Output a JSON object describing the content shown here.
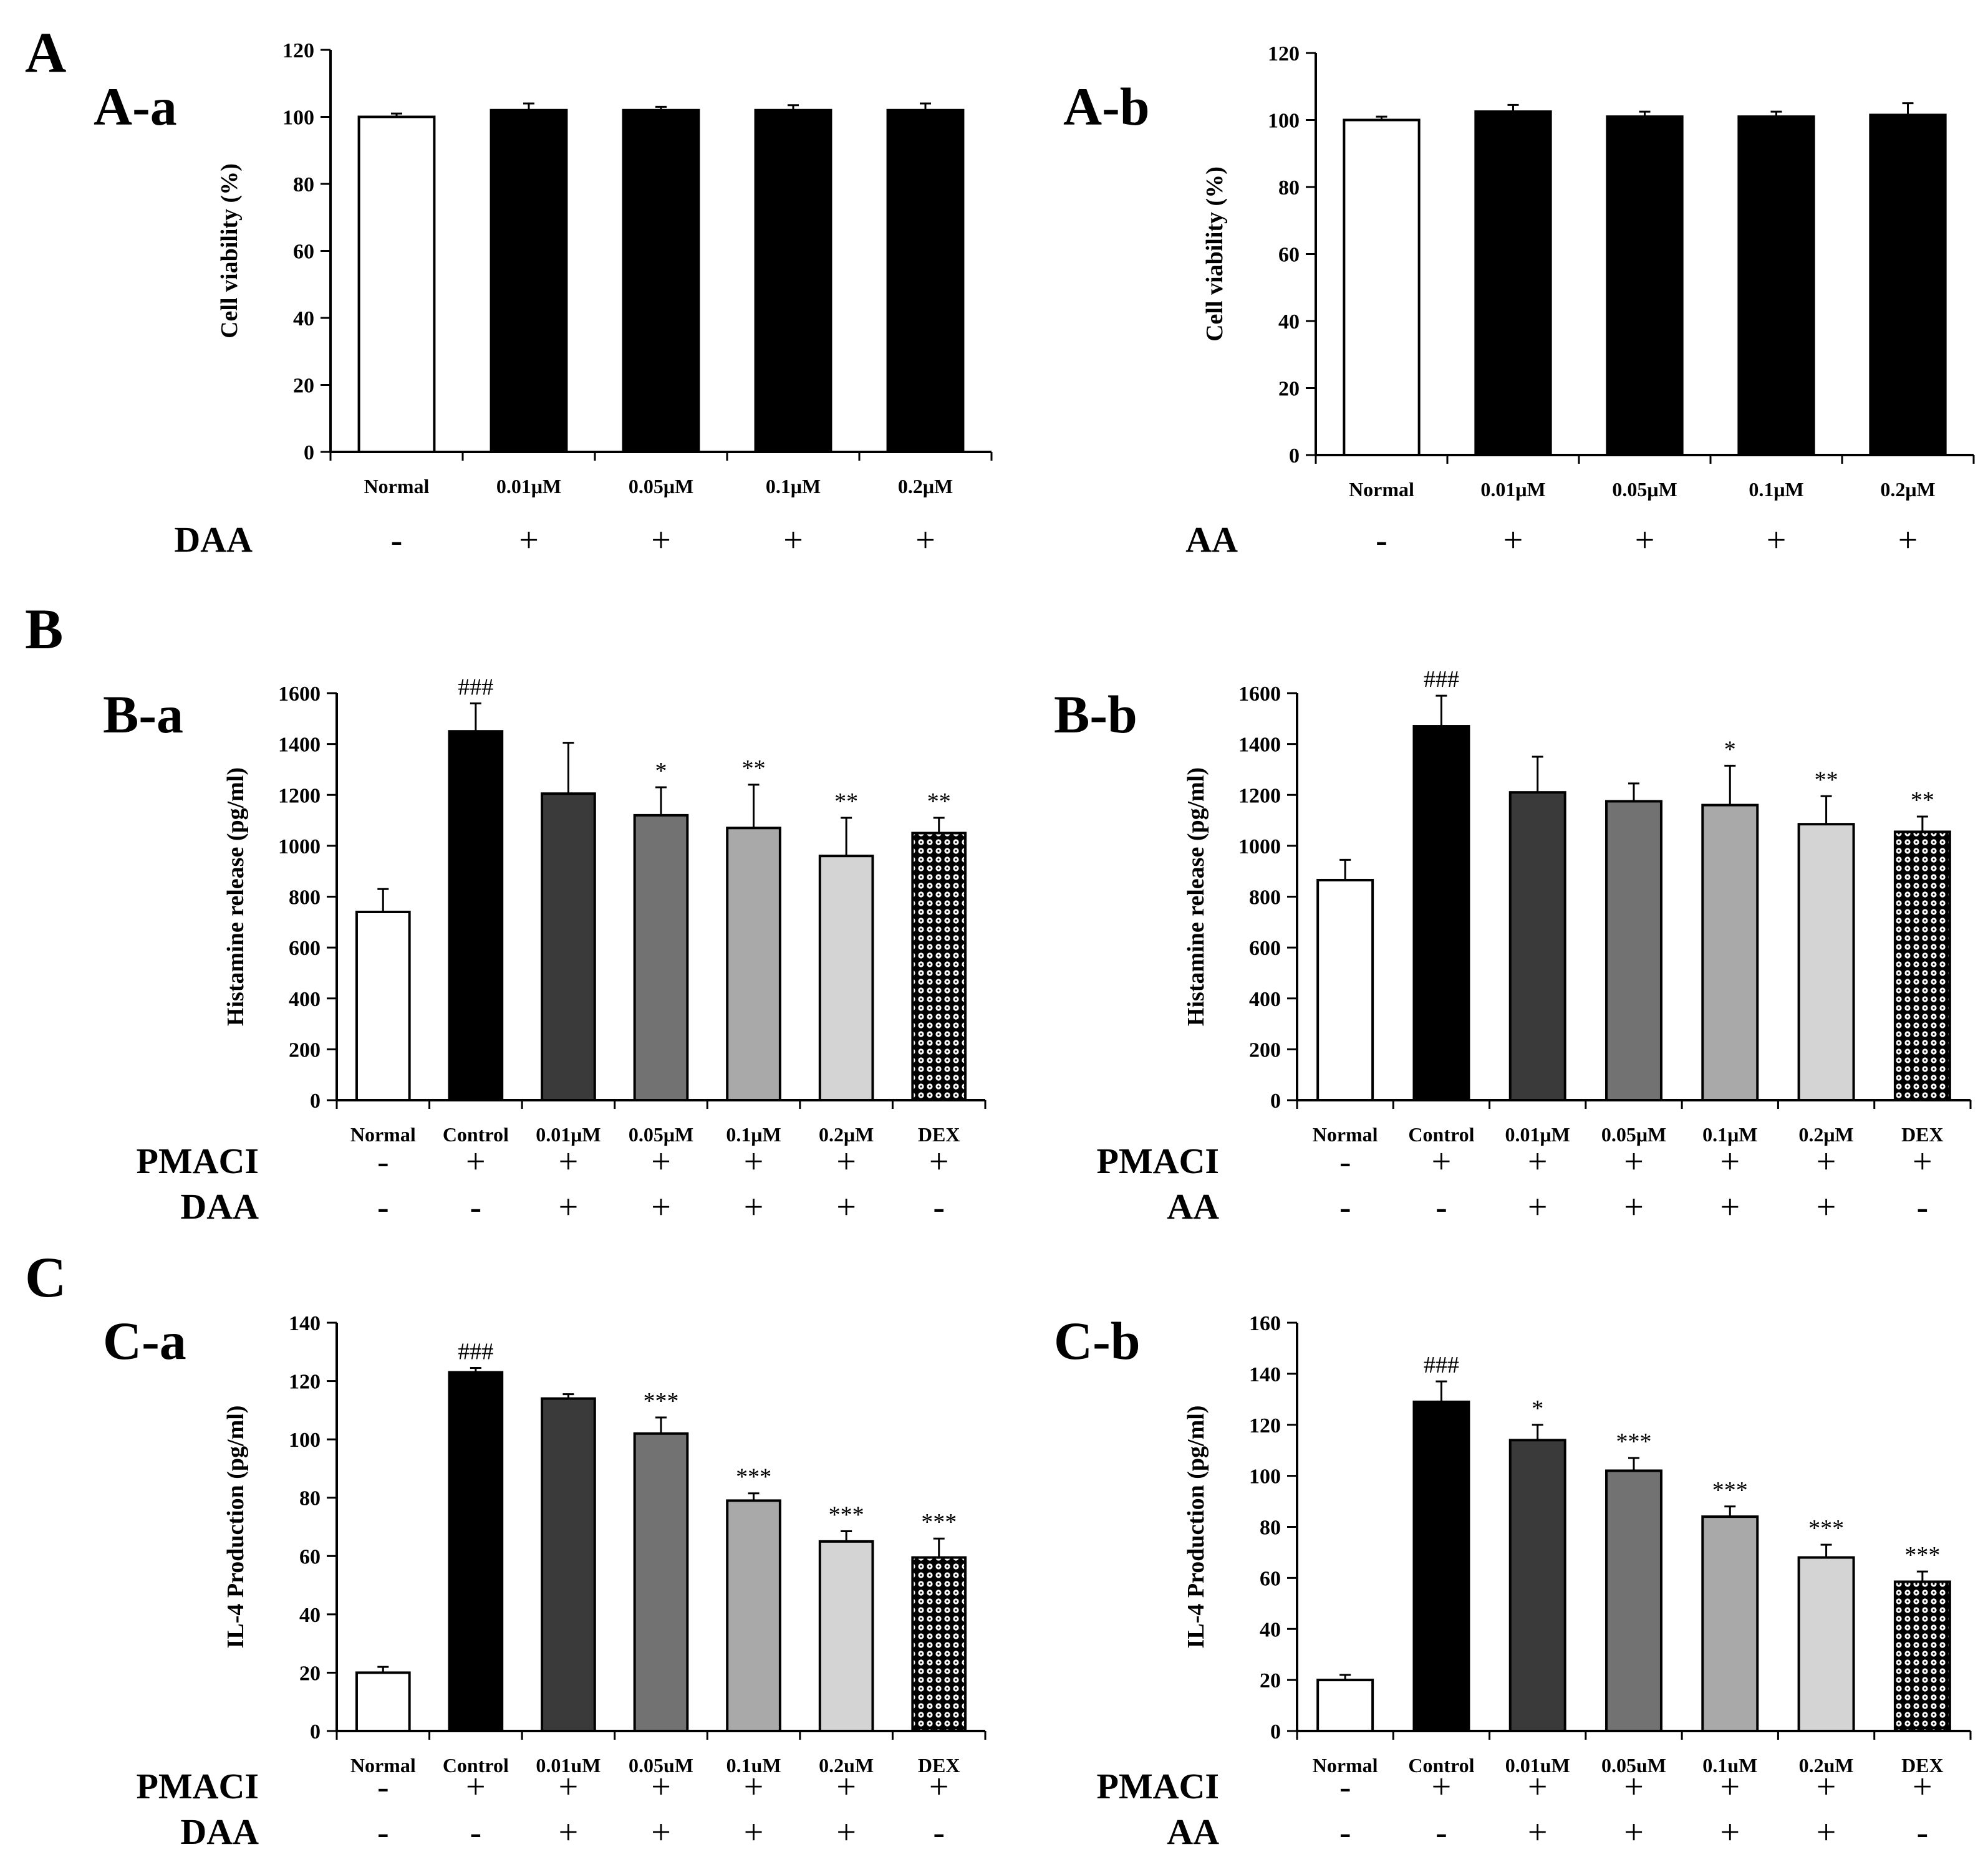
{
  "figure": {
    "sections": [
      "A",
      "B",
      "C"
    ],
    "patterns": {
      "dex_fill": "#000000",
      "dex_dots": "#ffffff"
    }
  },
  "chart_data": [
    {
      "id": "A-a",
      "type": "bar",
      "panel_label": "A-a",
      "ylabel": "Cell viability (%)",
      "ylim": [
        0,
        120
      ],
      "yticks": [
        0,
        20,
        40,
        60,
        80,
        100,
        120
      ],
      "categories": [
        "Normal",
        "0.01μM",
        "0.05μM",
        "0.1μM",
        "0.2μM"
      ],
      "values": [
        100,
        102,
        102,
        102,
        102
      ],
      "errors": [
        1,
        2,
        1,
        1.5,
        2
      ],
      "significance": [
        "",
        "",
        "",
        "",
        ""
      ],
      "colors": [
        "#ffffff",
        "#000000",
        "#000000",
        "#000000",
        "#000000"
      ],
      "treatments": [
        {
          "name": "DAA",
          "signs": [
            "-",
            "+",
            "+",
            "+",
            "+"
          ]
        }
      ]
    },
    {
      "id": "A-b",
      "type": "bar",
      "panel_label": "A-b",
      "ylabel": "Cell viability (%)",
      "ylim": [
        0,
        120
      ],
      "yticks": [
        0,
        20,
        40,
        60,
        80,
        100,
        120
      ],
      "categories": [
        "Normal",
        "0.01μM",
        "0.05μM",
        "0.1μM",
        "0.2μM"
      ],
      "values": [
        100,
        102.5,
        101,
        101,
        101.5
      ],
      "errors": [
        1,
        2,
        1.5,
        1.5,
        3.5
      ],
      "significance": [
        "",
        "",
        "",
        "",
        ""
      ],
      "colors": [
        "#ffffff",
        "#000000",
        "#000000",
        "#000000",
        "#000000"
      ],
      "treatments": [
        {
          "name": "AA",
          "signs": [
            "-",
            "+",
            "+",
            "+",
            "+"
          ]
        }
      ]
    },
    {
      "id": "B-a",
      "type": "bar",
      "panel_label": "B-a",
      "ylabel": "Histamine release (pg/ml)",
      "ylim": [
        0,
        1600
      ],
      "yticks": [
        0,
        200,
        400,
        600,
        800,
        1000,
        1200,
        1400,
        1600
      ],
      "categories": [
        "Normal",
        "Control",
        "0.01μM",
        "0.05μM",
        "0.1μM",
        "0.2μM",
        "DEX"
      ],
      "values": [
        740,
        1450,
        1205,
        1120,
        1070,
        960,
        1050
      ],
      "errors": [
        90,
        110,
        200,
        110,
        170,
        150,
        60
      ],
      "significance": [
        "",
        "###",
        "",
        "*",
        "**",
        "**",
        "**"
      ],
      "colors": [
        "#ffffff",
        "#000000",
        "#3a3a3a",
        "#727272",
        "#a9a9a9",
        "#d4d4d4",
        "pattern"
      ],
      "treatments": [
        {
          "name": "PMACI",
          "signs": [
            "-",
            "+",
            "+",
            "+",
            "+",
            "+",
            "+"
          ]
        },
        {
          "name": "DAA",
          "signs": [
            "-",
            "-",
            "+",
            "+",
            "+",
            "+",
            "-"
          ]
        }
      ]
    },
    {
      "id": "B-b",
      "type": "bar",
      "panel_label": "B-b",
      "ylabel": "Histamine release (pg/ml)",
      "ylim": [
        0,
        1600
      ],
      "yticks": [
        0,
        200,
        400,
        600,
        800,
        1000,
        1200,
        1400,
        1600
      ],
      "categories": [
        "Normal",
        "Control",
        "0.01μM",
        "0.05μM",
        "0.1μM",
        "0.2μM",
        "DEX"
      ],
      "values": [
        865,
        1470,
        1210,
        1175,
        1160,
        1085,
        1055
      ],
      "errors": [
        80,
        120,
        140,
        70,
        155,
        110,
        60
      ],
      "significance": [
        "",
        "###",
        "",
        "",
        "*",
        "**",
        "**"
      ],
      "colors": [
        "#ffffff",
        "#000000",
        "#3a3a3a",
        "#727272",
        "#a9a9a9",
        "#d4d4d4",
        "pattern"
      ],
      "treatments": [
        {
          "name": "PMACI",
          "signs": [
            "-",
            "+",
            "+",
            "+",
            "+",
            "+",
            "+"
          ]
        },
        {
          "name": "AA",
          "signs": [
            "-",
            "-",
            "+",
            "+",
            "+",
            "+",
            "-"
          ]
        }
      ]
    },
    {
      "id": "C-a",
      "type": "bar",
      "panel_label": "C-a",
      "ylabel": "IL-4 Production (pg/ml)",
      "ylim": [
        0,
        140
      ],
      "yticks": [
        0,
        20,
        40,
        60,
        80,
        100,
        120,
        140
      ],
      "categories": [
        "Normal",
        "Control",
        "0.01uM",
        "0.05uM",
        "0.1uM",
        "0.2uM",
        "DEX"
      ],
      "values": [
        20,
        123,
        114,
        102,
        79,
        65,
        59.5
      ],
      "errors": [
        2,
        1.5,
        1.5,
        5.5,
        2.5,
        3.5,
        6.5
      ],
      "significance": [
        "",
        "###",
        "",
        "***",
        "***",
        "***",
        "***"
      ],
      "colors": [
        "#ffffff",
        "#000000",
        "#3a3a3a",
        "#727272",
        "#a9a9a9",
        "#d4d4d4",
        "pattern"
      ],
      "treatments": [
        {
          "name": "PMACI",
          "signs": [
            "-",
            "+",
            "+",
            "+",
            "+",
            "+",
            "+"
          ]
        },
        {
          "name": "DAA",
          "signs": [
            "-",
            "-",
            "+",
            "+",
            "+",
            "+",
            "-"
          ]
        }
      ]
    },
    {
      "id": "C-b",
      "type": "bar",
      "panel_label": "C-b",
      "ylabel": "IL-4 Production (pg/ml)",
      "ylim": [
        0,
        160
      ],
      "yticks": [
        0,
        20,
        40,
        60,
        80,
        100,
        120,
        140,
        160
      ],
      "categories": [
        "Normal",
        "Control",
        "0.01uM",
        "0.05uM",
        "0.1uM",
        "0.2uM",
        "DEX"
      ],
      "values": [
        20,
        129,
        114,
        102,
        84,
        68,
        58.5
      ],
      "errors": [
        2,
        8,
        6,
        5,
        4,
        5,
        4
      ],
      "significance": [
        "",
        "###",
        "*",
        "***",
        "***",
        "***",
        "***"
      ],
      "colors": [
        "#ffffff",
        "#000000",
        "#3a3a3a",
        "#727272",
        "#a9a9a9",
        "#d4d4d4",
        "pattern"
      ],
      "treatments": [
        {
          "name": "PMACI",
          "signs": [
            "-",
            "+",
            "+",
            "+",
            "+",
            "+",
            "+"
          ]
        },
        {
          "name": "AA",
          "signs": [
            "-",
            "-",
            "+",
            "+",
            "+",
            "+",
            "-"
          ]
        }
      ]
    }
  ]
}
